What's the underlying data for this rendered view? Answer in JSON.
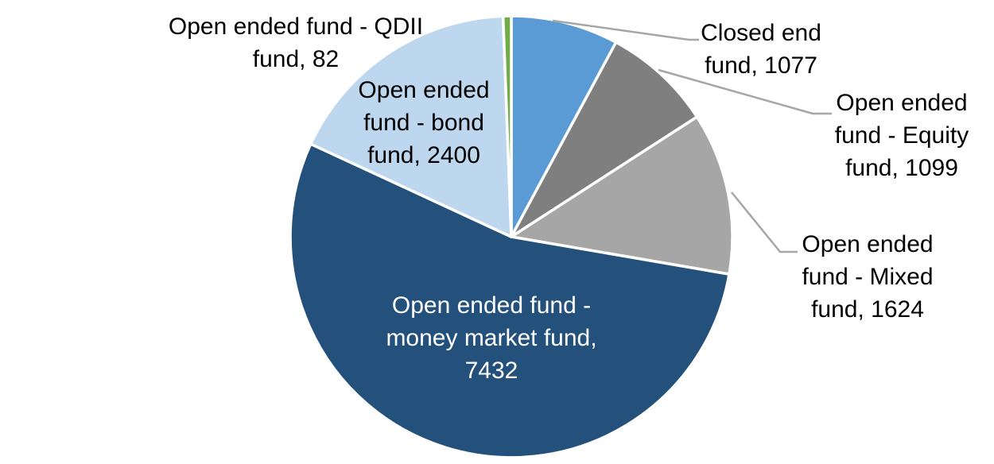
{
  "chart_data": {
    "type": "pie",
    "title": "",
    "legend": "none",
    "background": "#FFFFFF",
    "start_angle_deg": 0,
    "direction": "clockwise",
    "total": 13714,
    "slice_border_color": "#FFFFFF",
    "leader_line_color": "#A6A6A6",
    "slices": [
      {
        "id": "closed-end-fund",
        "label": "Closed end fund",
        "value": 1077,
        "color": "#5B9BD5",
        "label_text_color": "#000000",
        "label_lines": [
          "Closed end",
          "fund, 1077"
        ]
      },
      {
        "id": "open-ended-equity-fund",
        "label": "Open ended fund - Equity fund",
        "value": 1099,
        "color": "#7F7F7F",
        "label_text_color": "#000000",
        "label_lines": [
          "Open ended",
          "fund - Equity",
          "fund, 1099"
        ]
      },
      {
        "id": "open-ended-mixed-fund",
        "label": "Open ended fund - Mixed fund",
        "value": 1624,
        "color": "#A6A6A6",
        "label_text_color": "#000000",
        "label_lines": [
          "Open ended",
          "fund - Mixed",
          "fund, 1624"
        ]
      },
      {
        "id": "open-ended-money-market-fund",
        "label": "Open ended fund - money market fund",
        "value": 7432,
        "color": "#24517B",
        "label_text_color": "#FFFFFF",
        "label_lines": [
          "Open ended fund -",
          "money market fund,",
          "7432"
        ]
      },
      {
        "id": "open-ended-bond-fund",
        "label": "Open ended fund - bond fund",
        "value": 2400,
        "color": "#BDD7EE",
        "label_text_color": "#000000",
        "label_lines": [
          "Open ended",
          "fund - bond",
          "fund, 2400"
        ]
      },
      {
        "id": "open-ended-qdii-fund",
        "label": "Open ended fund - QDII fund",
        "value": 82,
        "color": "#70AD47",
        "label_text_color": "#000000",
        "label_lines": [
          "Open ended fund - QDII",
          "fund, 82"
        ]
      }
    ]
  }
}
